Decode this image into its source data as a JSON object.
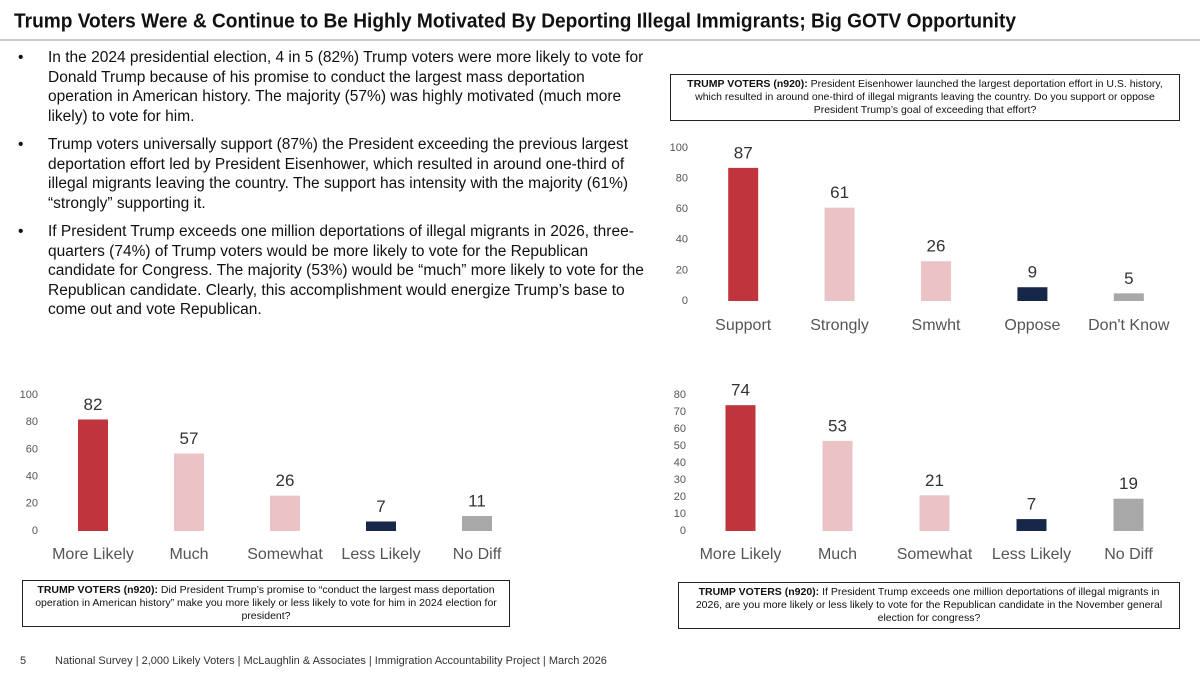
{
  "title": "Trump Voters Were & Continue to Be Highly Motivated By Deporting Illegal Immigrants; Big GOTV Opportunity",
  "bullets": [
    "In the 2024 presidential election, 4 in 5 (82%) Trump voters were more likely to vote for Donald Trump because of his promise to conduct the largest mass deportation operation in American history. The majority (57%) was highly motivated (much more likely) to vote for him.",
    "Trump voters universally support (87%) the President exceeding the previous largest deportation effort led by President Eisenhower, which resulted in around one-third of illegal migrants leaving the country. The support has intensity with the majority (61%) “strongly” supporting it.",
    "If President Trump exceeds one million deportations of illegal migrants in 2026, three-quarters (74%) of Trump voters would be more likely to vote for the Republican candidate for Congress. The majority (53%) would be “much” more likely to vote for the Republican candidate. Clearly, this accomplishment would energize Trump’s base to come out and vote Republican."
  ],
  "chart_data": [
    {
      "type": "bar",
      "question_label": "TRUMP VOTERS (n920):",
      "question": "President Eisenhower launched the largest deportation effort in U.S. history, which resulted in around one-third of illegal migrants leaving the country. Do you support or oppose President Trump’s goal of exceeding that effort?",
      "categories": [
        "Support",
        "Strongly",
        "Smwht",
        "Oppose",
        "Don't Know"
      ],
      "values": [
        87,
        61,
        26,
        9,
        5
      ],
      "colors": [
        "#c0353d",
        "#ebc3c7",
        "#ebc3c7",
        "#16274a",
        "#a8a8a8"
      ],
      "ylim": [
        0,
        100
      ],
      "yticks": [
        0,
        20,
        40,
        60,
        80,
        100
      ]
    },
    {
      "type": "bar",
      "question_label": "TRUMP VOTERS (n920):",
      "question": "Did President Trump’s promise to “conduct the largest mass deportation operation in American history” make you more likely or less likely to vote for him in 2024 election for president?",
      "categories": [
        "More Likely",
        "Much",
        "Somewhat",
        "Less Likely",
        "No Diff"
      ],
      "values": [
        82,
        57,
        26,
        7,
        11
      ],
      "colors": [
        "#c0353d",
        "#ebc3c7",
        "#ebc3c7",
        "#16274a",
        "#a8a8a8"
      ],
      "ylim": [
        0,
        100
      ],
      "yticks": [
        0,
        20,
        40,
        60,
        80,
        100
      ]
    },
    {
      "type": "bar",
      "question_label": "TRUMP VOTERS (n920):",
      "question": "If President Trump exceeds one million deportations of illegal migrants in 2026, are you more likely or less likely to vote for the Republican candidate in the November general election for congress?",
      "categories": [
        "More Likely",
        "Much",
        "Somewhat",
        "Less Likely",
        "No Diff"
      ],
      "values": [
        74,
        53,
        21,
        7,
        19
      ],
      "colors": [
        "#c0353d",
        "#ebc3c7",
        "#ebc3c7",
        "#16274a",
        "#a8a8a8"
      ],
      "ylim": [
        0,
        80
      ],
      "yticks": [
        0,
        10,
        20,
        30,
        40,
        50,
        60,
        70,
        80
      ]
    }
  ],
  "page_number": "5",
  "footer": "National Survey | 2,000 Likely Voters | McLaughlin & Associates | Immigration Accountability Project | March 2026"
}
